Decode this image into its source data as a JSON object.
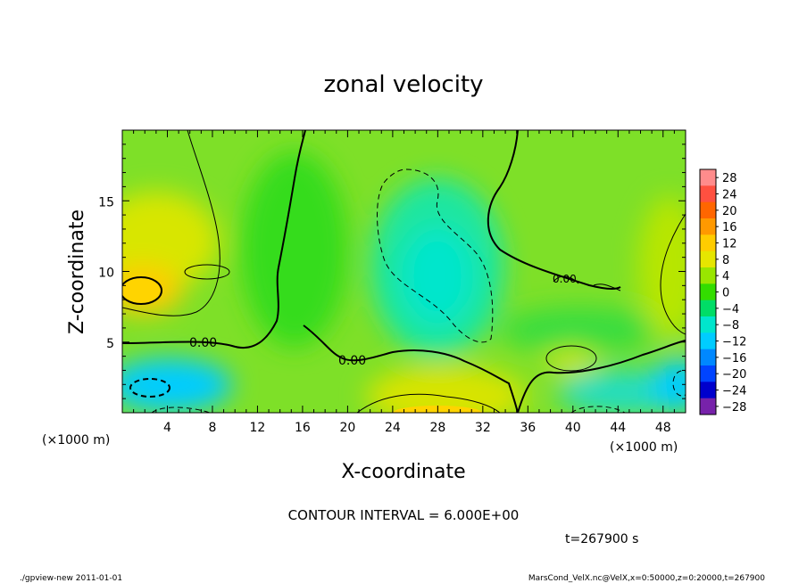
{
  "chart_data": {
    "type": "heatmap",
    "title": "zonal velocity",
    "xlabel": "X-coordinate",
    "ylabel": "Z-coordinate",
    "x_unit": "(×1000 m)",
    "z_unit": "(×1000 m)",
    "xlim": [
      0,
      50
    ],
    "ylim": [
      0,
      20
    ],
    "x_ticks": [
      4,
      8,
      12,
      16,
      20,
      24,
      28,
      32,
      36,
      40,
      44,
      48
    ],
    "z_ticks": [
      5,
      10,
      15
    ],
    "contour_label": "0.00",
    "contour_interval_text": "CONTOUR INTERVAL = 6.000E+00",
    "time_text": "t=267900 s",
    "colorbar": {
      "levels": [
        28,
        24,
        20,
        16,
        12,
        8,
        4,
        0,
        -4,
        -8,
        -12,
        -16,
        -20,
        -24,
        -28
      ],
      "labels": [
        "28",
        "24",
        "20",
        "16",
        "12",
        "8",
        "4",
        "0",
        "−4",
        "−8",
        "−12",
        "−16",
        "−20",
        "−24",
        "−28"
      ],
      "colors": [
        "#ff8c8c",
        "#ff5040",
        "#ff6600",
        "#ff9900",
        "#ffcc00",
        "#e6e600",
        "#99e600",
        "#33dd00",
        "#00dd66",
        "#00e6cc",
        "#00ccff",
        "#0088ff",
        "#0044ff",
        "#0000cc",
        "#7722aa"
      ]
    }
  },
  "footer": {
    "left": "./gpview-new  2011-01-01",
    "right": "MarsCond_VelX.nc@VelX,x=0:50000,z=0:20000,t=267900"
  }
}
